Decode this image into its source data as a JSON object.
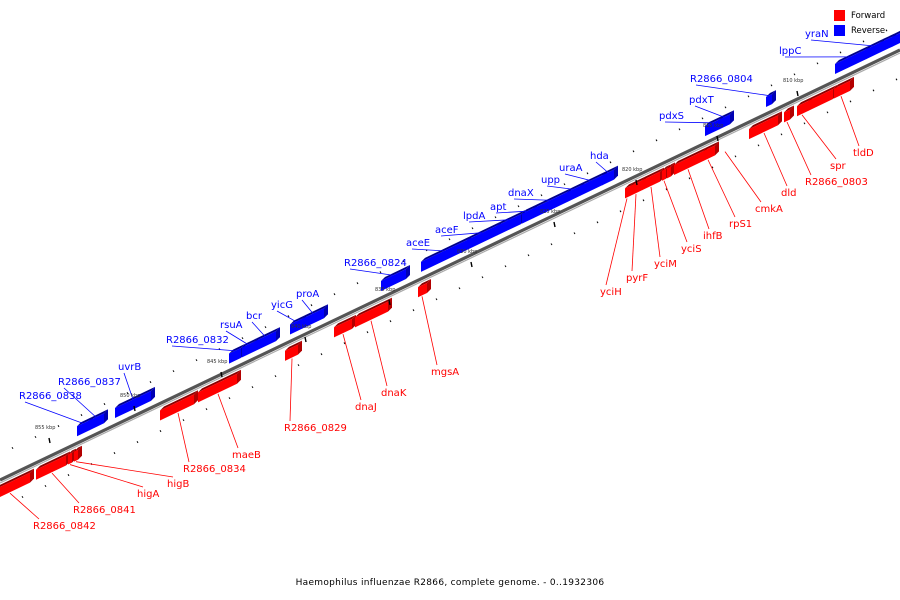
{
  "legend": {
    "forward_label": "Forward",
    "reverse_label": "Reverse",
    "forward_color": "#ff0000",
    "reverse_color": "#0000ff"
  },
  "caption": "Haemophilus influenzae R2866, complete genome. - 0..1932306",
  "kbp_labels": [
    "855 kbp",
    "850 kbp",
    "845 kbp",
    "840 kbp",
    "835 kbp",
    "830 kbp",
    "825 kbp",
    "820 kbp",
    "815 kbp",
    "810 kbp"
  ],
  "forward_genes": [
    "R2866_0842",
    "R2866_0841",
    "higA",
    "higB",
    "R2866_0834",
    "maeB",
    "R2866_0829",
    "dnaJ",
    "dnaK",
    "mgsA",
    "yciH",
    "pyrF",
    "yciM",
    "yciS",
    "ihfB",
    "rpS1",
    "cmkA",
    "dld",
    "R2866_0803",
    "spr",
    "tldD"
  ],
  "reverse_genes": [
    "R2866_0838",
    "R2866_0837",
    "uvrB",
    "R2866_0832",
    "rsuA",
    "bcr",
    "yicG",
    "proA",
    "R2866_0824",
    "aceE",
    "aceF",
    "lpdA",
    "apt",
    "dnaX",
    "upp",
    "uraA",
    "hda",
    "pdxS",
    "pdxT",
    "R2866_0804",
    "lppC",
    "yraN"
  ]
}
